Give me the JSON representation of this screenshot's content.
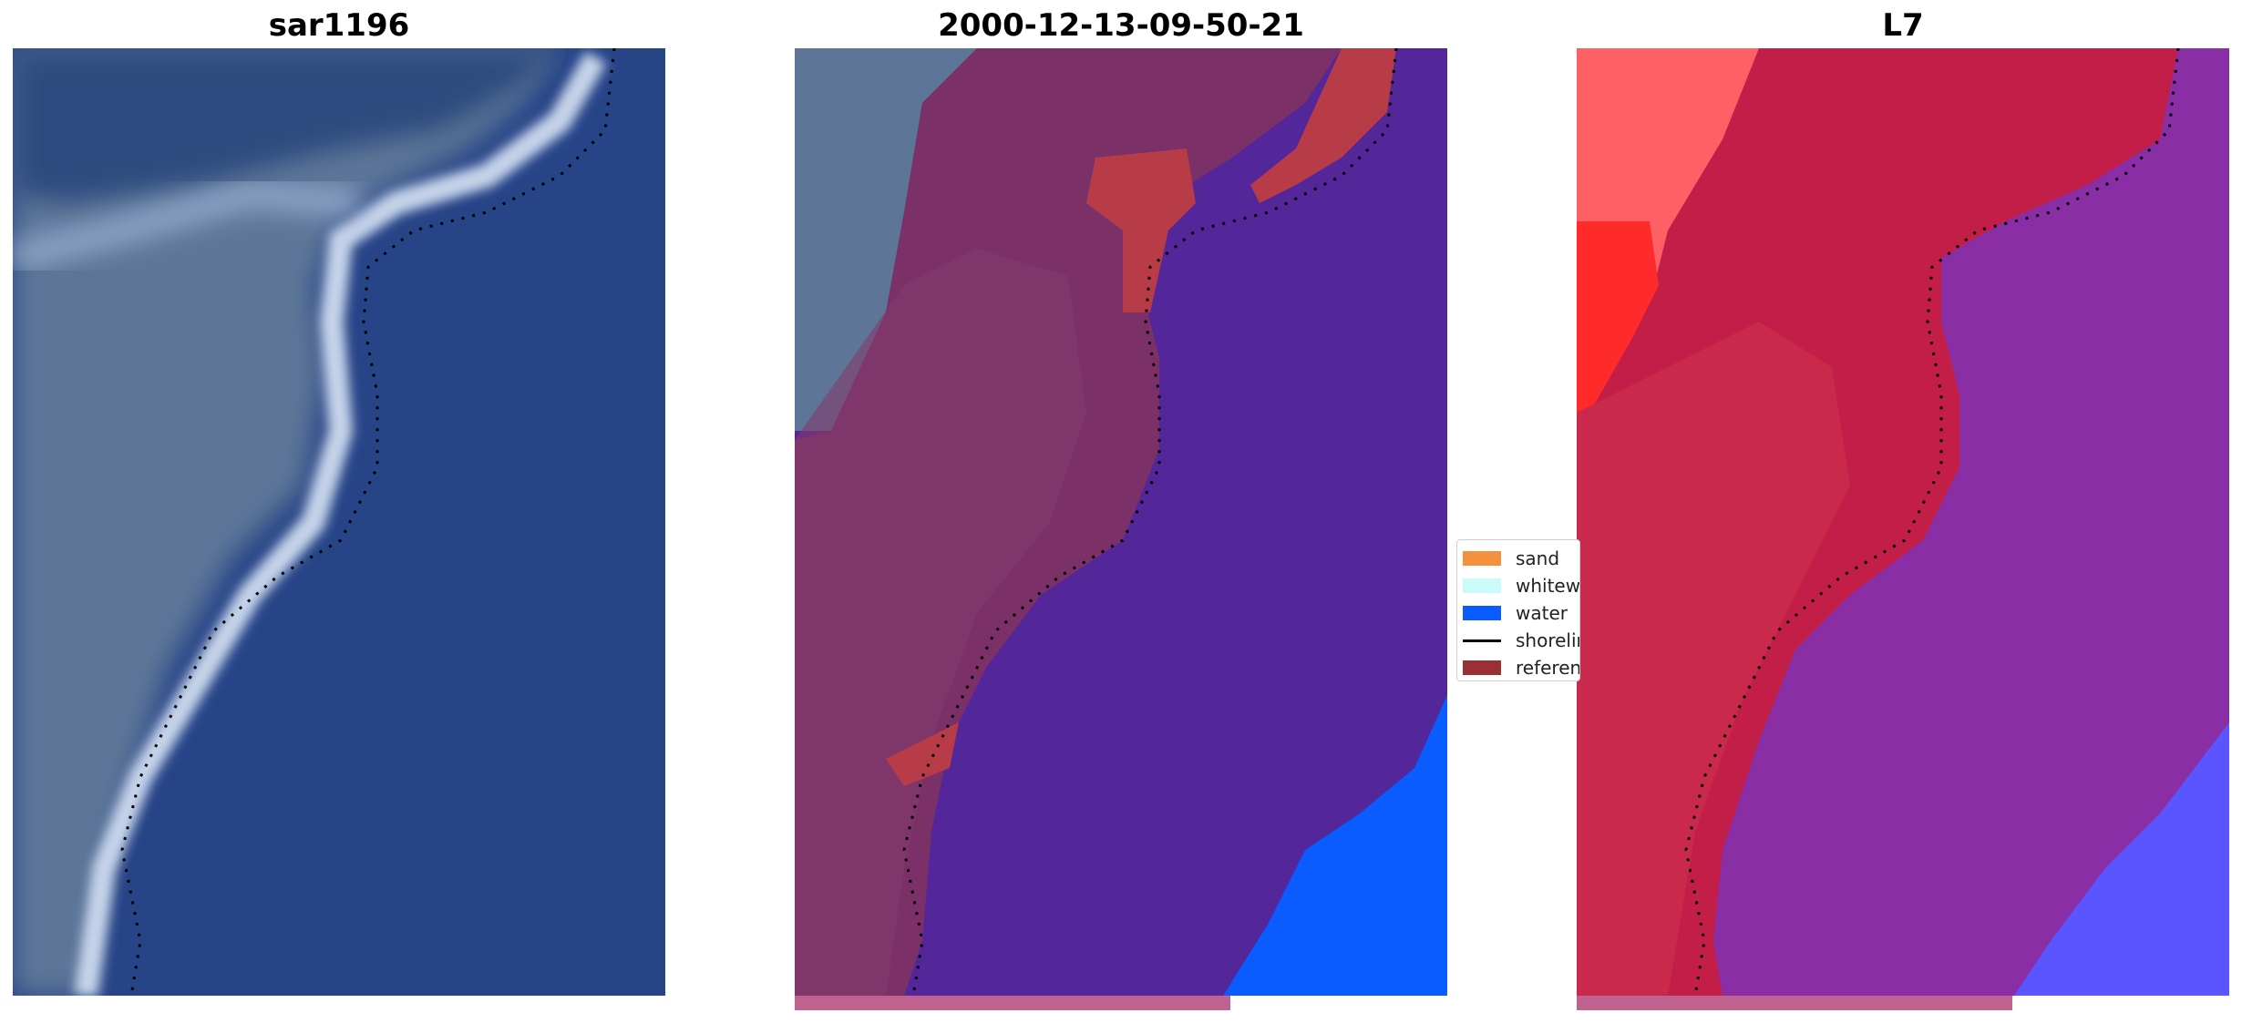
{
  "panels": [
    {
      "title": "sar1196"
    },
    {
      "title": "2000-12-13-09-50-21"
    },
    {
      "title": "L7"
    }
  ],
  "legend": {
    "items": [
      {
        "label": "sand",
        "color": "#f5903d",
        "kind": "patch"
      },
      {
        "label": "whitewater",
        "color": "#c9fbfb",
        "kind": "patch"
      },
      {
        "label": "water",
        "color": "#0a5cff",
        "kind": "patch"
      },
      {
        "label": "shoreline",
        "color": "#000000",
        "kind": "line"
      },
      {
        "label": "reference",
        "color": "#9b3034",
        "kind": "patch"
      }
    ]
  },
  "colors": {
    "ocean": "#274487",
    "surf": "#c9d6ec",
    "land_rgb": "#5c7497",
    "overlay_land": "#7a2f66",
    "overlay_water": "#53269a",
    "overlay_reference": "#b83b48",
    "overlay_bright_water": "#0a5cff",
    "l7_land": "#c21e48",
    "l7_water": "#8a2ea6",
    "l7_bright": "#ff2a2a",
    "l7_blue": "#5a55ff",
    "bottom_band": "#c0628f"
  }
}
